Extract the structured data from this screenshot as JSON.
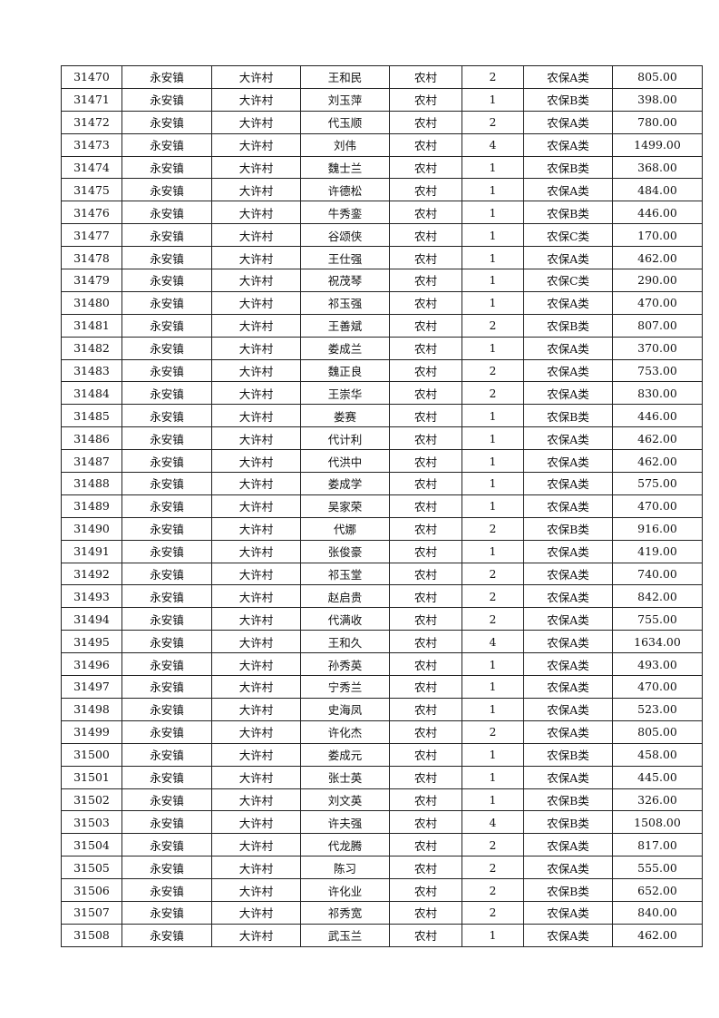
{
  "table": {
    "rows": [
      [
        "31470",
        "永安镇",
        "大许村",
        "王和民",
        "农村",
        "2",
        "农保A类",
        "805.00"
      ],
      [
        "31471",
        "永安镇",
        "大许村",
        "刘玉萍",
        "农村",
        "1",
        "农保B类",
        "398.00"
      ],
      [
        "31472",
        "永安镇",
        "大许村",
        "代玉顺",
        "农村",
        "2",
        "农保A类",
        "780.00"
      ],
      [
        "31473",
        "永安镇",
        "大许村",
        "刘伟",
        "农村",
        "4",
        "农保A类",
        "1499.00"
      ],
      [
        "31474",
        "永安镇",
        "大许村",
        "魏士兰",
        "农村",
        "1",
        "农保B类",
        "368.00"
      ],
      [
        "31475",
        "永安镇",
        "大许村",
        "许德松",
        "农村",
        "1",
        "农保A类",
        "484.00"
      ],
      [
        "31476",
        "永安镇",
        "大许村",
        "牛秀銮",
        "农村",
        "1",
        "农保B类",
        "446.00"
      ],
      [
        "31477",
        "永安镇",
        "大许村",
        "谷颂侠",
        "农村",
        "1",
        "农保C类",
        "170.00"
      ],
      [
        "31478",
        "永安镇",
        "大许村",
        "王仕强",
        "农村",
        "1",
        "农保A类",
        "462.00"
      ],
      [
        "31479",
        "永安镇",
        "大许村",
        "祝茂琴",
        "农村",
        "1",
        "农保C类",
        "290.00"
      ],
      [
        "31480",
        "永安镇",
        "大许村",
        "祁玉强",
        "农村",
        "1",
        "农保A类",
        "470.00"
      ],
      [
        "31481",
        "永安镇",
        "大许村",
        "王善斌",
        "农村",
        "2",
        "农保B类",
        "807.00"
      ],
      [
        "31482",
        "永安镇",
        "大许村",
        "娄成兰",
        "农村",
        "1",
        "农保A类",
        "370.00"
      ],
      [
        "31483",
        "永安镇",
        "大许村",
        "魏正良",
        "农村",
        "2",
        "农保A类",
        "753.00"
      ],
      [
        "31484",
        "永安镇",
        "大许村",
        "王崇华",
        "农村",
        "2",
        "农保A类",
        "830.00"
      ],
      [
        "31485",
        "永安镇",
        "大许村",
        "娄赛",
        "农村",
        "1",
        "农保B类",
        "446.00"
      ],
      [
        "31486",
        "永安镇",
        "大许村",
        "代计利",
        "农村",
        "1",
        "农保A类",
        "462.00"
      ],
      [
        "31487",
        "永安镇",
        "大许村",
        "代洪中",
        "农村",
        "1",
        "农保A类",
        "462.00"
      ],
      [
        "31488",
        "永安镇",
        "大许村",
        "娄成学",
        "农村",
        "1",
        "农保A类",
        "575.00"
      ],
      [
        "31489",
        "永安镇",
        "大许村",
        "吴家荣",
        "农村",
        "1",
        "农保A类",
        "470.00"
      ],
      [
        "31490",
        "永安镇",
        "大许村",
        "代娜",
        "农村",
        "2",
        "农保B类",
        "916.00"
      ],
      [
        "31491",
        "永安镇",
        "大许村",
        "张俊豪",
        "农村",
        "1",
        "农保A类",
        "419.00"
      ],
      [
        "31492",
        "永安镇",
        "大许村",
        "祁玉堂",
        "农村",
        "2",
        "农保A类",
        "740.00"
      ],
      [
        "31493",
        "永安镇",
        "大许村",
        "赵启贵",
        "农村",
        "2",
        "农保A类",
        "842.00"
      ],
      [
        "31494",
        "永安镇",
        "大许村",
        "代满收",
        "农村",
        "2",
        "农保A类",
        "755.00"
      ],
      [
        "31495",
        "永安镇",
        "大许村",
        "王和久",
        "农村",
        "4",
        "农保A类",
        "1634.00"
      ],
      [
        "31496",
        "永安镇",
        "大许村",
        "孙秀英",
        "农村",
        "1",
        "农保A类",
        "493.00"
      ],
      [
        "31497",
        "永安镇",
        "大许村",
        "宁秀兰",
        "农村",
        "1",
        "农保A类",
        "470.00"
      ],
      [
        "31498",
        "永安镇",
        "大许村",
        "史海凤",
        "农村",
        "1",
        "农保A类",
        "523.00"
      ],
      [
        "31499",
        "永安镇",
        "大许村",
        "许化杰",
        "农村",
        "2",
        "农保A类",
        "805.00"
      ],
      [
        "31500",
        "永安镇",
        "大许村",
        "娄成元",
        "农村",
        "1",
        "农保B类",
        "458.00"
      ],
      [
        "31501",
        "永安镇",
        "大许村",
        "张士英",
        "农村",
        "1",
        "农保A类",
        "445.00"
      ],
      [
        "31502",
        "永安镇",
        "大许村",
        "刘文英",
        "农村",
        "1",
        "农保B类",
        "326.00"
      ],
      [
        "31503",
        "永安镇",
        "大许村",
        "许夫强",
        "农村",
        "4",
        "农保B类",
        "1508.00"
      ],
      [
        "31504",
        "永安镇",
        "大许村",
        "代龙腾",
        "农村",
        "2",
        "农保A类",
        "817.00"
      ],
      [
        "31505",
        "永安镇",
        "大许村",
        "陈习",
        "农村",
        "2",
        "农保A类",
        "555.00"
      ],
      [
        "31506",
        "永安镇",
        "大许村",
        "许化业",
        "农村",
        "2",
        "农保B类",
        "652.00"
      ],
      [
        "31507",
        "永安镇",
        "大许村",
        "祁秀宽",
        "农村",
        "2",
        "农保A类",
        "840.00"
      ],
      [
        "31508",
        "永安镇",
        "大许村",
        "武玉兰",
        "农村",
        "1",
        "农保A类",
        "462.00"
      ]
    ]
  }
}
